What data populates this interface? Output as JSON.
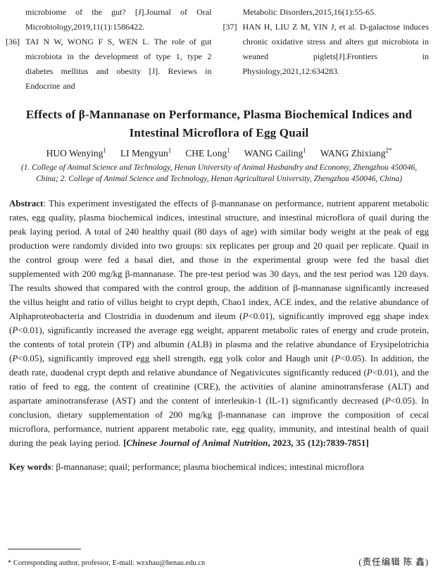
{
  "theme": {
    "background": "#ffffff",
    "text_color": "#1c1c1c"
  },
  "references": {
    "left": [
      {
        "label": "",
        "text": "microbiome of the gut? [J].Journal of Oral Microbiology,2019,11(1):1586422."
      },
      {
        "label": "[36]",
        "text": "TAI N W, WONG F S, WEN L. The role of gut microbiota in the development of type 1, type 2 diabetes mellitus and obesity [J]. Reviews in Endocrine and"
      }
    ],
    "right": [
      {
        "label": "",
        "text": "Metabolic Disorders,2015,16(1):55-65."
      },
      {
        "label": "[37]",
        "text": "HAN H, LIU Z M, YIN J, et al. D-galactose induces chronic oxidative stress and alters gut microbiota in weaned piglets[J].Frontiers in Physiology,2021,12:634283."
      }
    ]
  },
  "article": {
    "title": "Effects of β-Mannanase on Performance, Plasma Biochemical Indices and Intestinal Microflora of Egg Quail",
    "authors": [
      {
        "name": "HUO Wenying",
        "sup": "1"
      },
      {
        "name": "LI Mengyun",
        "sup": "1"
      },
      {
        "name": "CHE Long",
        "sup": "1"
      },
      {
        "name": "WANG Cailing",
        "sup": "1"
      },
      {
        "name": "WANG Zhixiang",
        "sup": "2*"
      }
    ],
    "affiliation": "(1. College of Animal Science and Technology, Henan University of Animal Husbandry and Economy, Zhengzhou 450046, China; 2. College of Animal Science and Technology, Henan Agricultural University, Zhengzhou 450046, China)"
  },
  "abstract": {
    "runs": [
      {
        "t": "Abstract",
        "b": true
      },
      {
        "t": ": This experiment investigated the effects of β-mannanase on performance, nutrient apparent metabolic rates, egg quality, plasma biochemical indices, intestinal structure, and intestinal microflora of quail during the peak laying period. A total of 240 healthy quail (80 days of age) with similar body weight at the peak of egg production were randomly divided into two groups: six replicates per group and 20 quail per replicate. Quail in the control group were fed a basal diet, and those in the experimental group were fed the basal diet supplemented with 200 mg/kg β-mannanase. The pre-test period was 30 days, and the test period was 120 days. The results showed that compared with the control group, the addition of β-mannanase significantly increased the villus height and ratio of villus height to crypt depth, Chao1 index, ACE index, and the relative abundance of Alphaproteobacteria and Clostridia in duodenum and ileum ("
      },
      {
        "t": "P",
        "i": true
      },
      {
        "t": "<0.01), significantly improved egg shape index ("
      },
      {
        "t": "P",
        "i": true
      },
      {
        "t": "<0.01), significantly increased the average egg weight, apparent metabolic rates of energy and crude protein, the contents of total protein (TP) and albumin (ALB) in plasma and the relative abundance of Erysipelotrichia ("
      },
      {
        "t": "P",
        "i": true
      },
      {
        "t": "<0.05), significantly improved egg shell strength, egg yolk color and Haugh unit ("
      },
      {
        "t": "P",
        "i": true
      },
      {
        "t": "<0.05). In addition, the death rate, duodenal crypt depth and relative abundance of Negativicutes significantly reduced ("
      },
      {
        "t": "P",
        "i": true
      },
      {
        "t": "<0.01), and the ratio of feed to egg, the content of creatinine (CRE), the activities of alanine aminotransferase (ALT) and aspartate aminotransferase (AST) and the content of interleukin-1 (IL-1) significantly decreased ("
      },
      {
        "t": "P",
        "i": true
      },
      {
        "t": "<0.05). In conclusion, dietary supplementation of 200 mg/kg β-mannanase can improve the composition of cecal microflora, performance, nutrient apparent metabolic rate, egg quality, immunity, and intestinal health of quail during the peak laying period. "
      },
      {
        "t": "[",
        "b": true
      },
      {
        "t": "Chinese Journal of Animal Nutrition",
        "b": true,
        "i": true
      },
      {
        "t": ", 2023, 35 (12):7839-7851]",
        "b": true
      }
    ]
  },
  "keywords": {
    "runs": [
      {
        "t": "Key words",
        "b": true
      },
      {
        "t": ": β-mannanase; quail; performance; plasma biochemical indices; intestinal microflora"
      }
    ]
  },
  "footer": {
    "note": "* Corresponding author, professor, E-mail: wzxhau@henau.edu.cn",
    "editor": "(责任编辑  陈  鑫)"
  }
}
